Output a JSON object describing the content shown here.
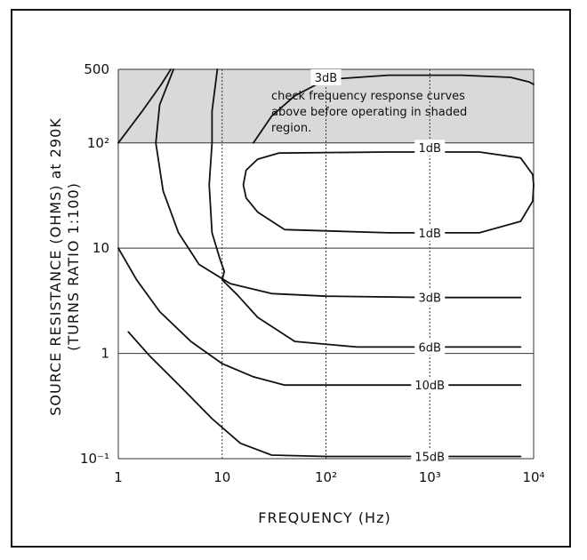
{
  "chart_data": {
    "type": "line",
    "title": "",
    "xlabel": "FREQUENCY (Hz)",
    "ylabel": "SOURCE RESISTANCE (OHMS) at 290K",
    "ylabel2": "(TURNS RATIO 1:100)",
    "xscale": "log",
    "yscale": "log",
    "xlim": [
      1,
      10000
    ],
    "ylim": [
      0.1,
      500
    ],
    "x_tick_labels": [
      "1",
      "10",
      "10²",
      "10³",
      "10⁴"
    ],
    "y_tick_labels": [
      "500",
      "10²",
      "10",
      "1",
      "10⁻¹"
    ],
    "grid": true,
    "shaded_region": {
      "ylim": [
        100,
        500
      ],
      "note_lines": [
        "check frequency response curves",
        "above before operating in shaded",
        "region."
      ]
    },
    "series": [
      {
        "name": "3dB",
        "label_at": [
          100,
          420
        ],
        "segments": [
          [
            [
              1,
              100
            ],
            [
              1.7,
              200
            ],
            [
              2.6,
              360
            ],
            [
              3.2,
              500
            ]
          ],
          [
            [
              20,
              100
            ],
            [
              30,
              180
            ],
            [
              50,
              280
            ],
            [
              100,
              400
            ],
            [
              400,
              440
            ],
            [
              2000,
              440
            ],
            [
              6000,
              420
            ],
            [
              9000,
              380
            ],
            [
              10000,
              360
            ]
          ]
        ]
      },
      {
        "name": "1dB",
        "label_at": [
          1000,
          90
        ],
        "closed": true,
        "points": [
          [
            35,
            80
          ],
          [
            400,
            82
          ],
          [
            3000,
            82
          ],
          [
            7500,
            72
          ],
          [
            9800,
            50
          ],
          [
            10000,
            40
          ],
          [
            9800,
            28
          ],
          [
            7500,
            18
          ],
          [
            3000,
            14
          ],
          [
            400,
            14
          ],
          [
            40,
            15
          ],
          [
            22,
            22
          ],
          [
            17,
            30
          ],
          [
            16,
            40
          ],
          [
            17,
            55
          ],
          [
            22,
            70
          ],
          [
            35,
            80
          ]
        ]
      },
      {
        "name": "1dB",
        "label_at": [
          1000,
          14
        ],
        "points": []
      },
      {
        "name": "3dB",
        "label_at": [
          1000,
          3.4
        ],
        "points": [
          [
            3.4,
            500
          ],
          [
            2.5,
            230
          ],
          [
            2.3,
            100
          ],
          [
            2.7,
            35
          ],
          [
            3.8,
            14
          ],
          [
            6,
            7
          ],
          [
            12,
            4.6
          ],
          [
            30,
            3.7
          ],
          [
            100,
            3.5
          ],
          [
            1000,
            3.4
          ],
          [
            7500,
            3.4
          ]
        ]
      },
      {
        "name": "6dB",
        "label_at": [
          1000,
          1.15
        ],
        "points": [
          [
            9,
            500
          ],
          [
            8,
            200
          ],
          [
            8,
            100
          ],
          [
            7.5,
            40
          ],
          [
            8,
            14
          ],
          [
            9.5,
            8
          ],
          [
            10.5,
            6
          ],
          [
            10,
            5
          ],
          [
            14,
            3.6
          ],
          [
            22,
            2.2
          ],
          [
            50,
            1.3
          ],
          [
            200,
            1.15
          ],
          [
            1000,
            1.15
          ],
          [
            7500,
            1.15
          ]
        ]
      },
      {
        "name": "10dB",
        "label_at": [
          1000,
          0.5
        ],
        "points": [
          [
            1,
            10
          ],
          [
            1.5,
            5
          ],
          [
            2.5,
            2.5
          ],
          [
            5,
            1.3
          ],
          [
            10,
            0.8
          ],
          [
            20,
            0.6
          ],
          [
            40,
            0.5
          ],
          [
            200,
            0.5
          ],
          [
            1000,
            0.5
          ],
          [
            7500,
            0.5
          ]
        ]
      },
      {
        "name": "15dB",
        "label_at": [
          1000,
          0.105
        ],
        "points": [
          [
            1.25,
            1.6
          ],
          [
            2,
            0.95
          ],
          [
            4,
            0.48
          ],
          [
            8,
            0.24
          ],
          [
            15,
            0.14
          ],
          [
            30,
            0.108
          ],
          [
            100,
            0.105
          ],
          [
            1000,
            0.105
          ],
          [
            7500,
            0.105
          ]
        ]
      }
    ]
  }
}
